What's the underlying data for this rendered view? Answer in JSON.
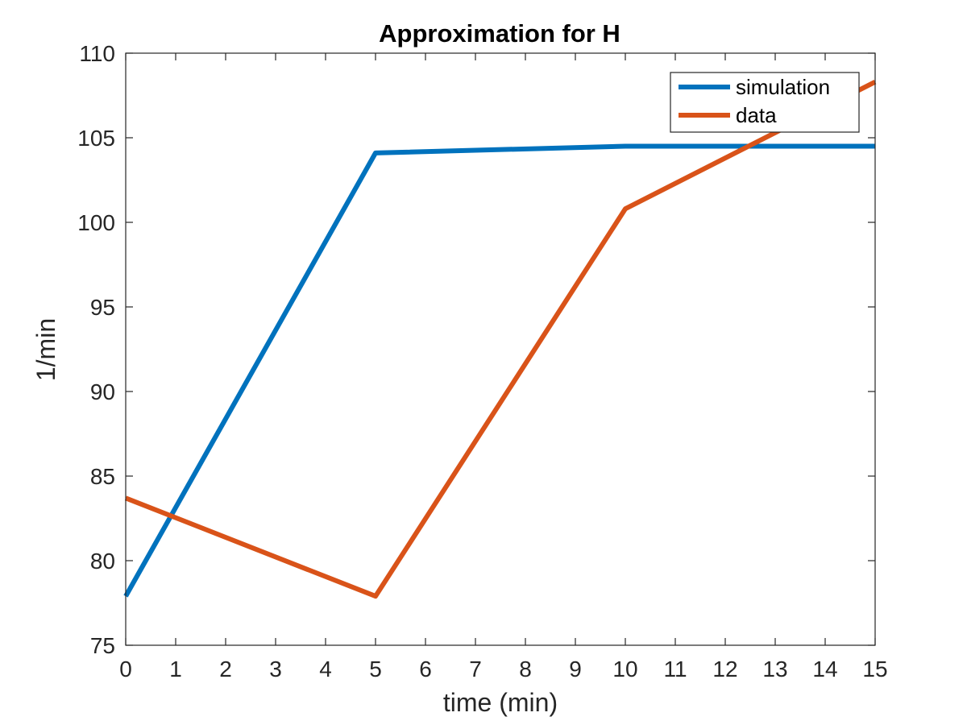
{
  "chart_data": {
    "type": "line",
    "title": "Approximation for H",
    "xlabel": "time (min)",
    "ylabel": "1/min",
    "xlim": [
      0,
      15
    ],
    "ylim": [
      75,
      110
    ],
    "xticks": [
      0,
      1,
      2,
      3,
      4,
      5,
      6,
      7,
      8,
      9,
      10,
      11,
      12,
      13,
      14,
      15
    ],
    "yticks": [
      75,
      80,
      85,
      90,
      95,
      100,
      105,
      110
    ],
    "grid": false,
    "legend_position": "top-right",
    "series": [
      {
        "name": "simulation",
        "color": "#0072BD",
        "x": [
          0,
          5,
          10,
          15
        ],
        "y": [
          77.9,
          104.1,
          104.5,
          104.5
        ]
      },
      {
        "name": "data",
        "color": "#D95319",
        "x": [
          0,
          5,
          10,
          15
        ],
        "y": [
          83.7,
          77.9,
          100.8,
          108.3
        ]
      }
    ]
  }
}
